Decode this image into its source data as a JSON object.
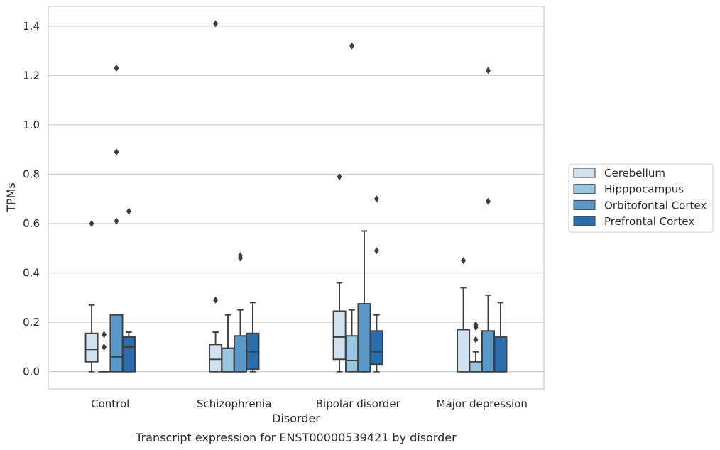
{
  "chart_data": {
    "type": "box",
    "xlabel": "Disorder",
    "ylabel": "TPMs",
    "caption": "Transcript expression for ENST00000539421 by disorder",
    "ylim": [
      -0.07,
      1.48
    ],
    "yticks": [
      0.0,
      0.2,
      0.4,
      0.6,
      0.8,
      1.0,
      1.2,
      1.4
    ],
    "ytick_labels": [
      "0.0",
      "0.2",
      "0.4",
      "0.6",
      "0.8",
      "1.0",
      "1.2",
      "1.4"
    ],
    "grid": "horizontal",
    "legend_position": "right",
    "categories": [
      "Control",
      "Schizophrenia",
      "Bipolar disorder",
      "Major depression"
    ],
    "series": [
      {
        "name": "Cerebellum",
        "color": "#d1e1f0",
        "boxes": [
          {
            "whislo": 0.0,
            "q1": 0.04,
            "med": 0.09,
            "q3": 0.155,
            "whishi": 0.27,
            "fliers": [
              0.6
            ]
          },
          {
            "whislo": 0.0,
            "q1": 0.0,
            "med": 0.05,
            "q3": 0.11,
            "whishi": 0.16,
            "fliers": [
              0.29,
              1.41
            ]
          },
          {
            "whislo": 0.0,
            "q1": 0.05,
            "med": 0.14,
            "q3": 0.245,
            "whishi": 0.36,
            "fliers": [
              0.79
            ]
          },
          {
            "whislo": 0.0,
            "q1": 0.0,
            "med": 0.0,
            "q3": 0.17,
            "whishi": 0.34,
            "fliers": [
              0.45
            ]
          }
        ]
      },
      {
        "name": "Hipppocampus",
        "color": "#9ac6df",
        "boxes": [
          {
            "whislo": 0.0,
            "q1": 0.0,
            "med": 0.0,
            "q3": 0.0,
            "whishi": 0.0,
            "fliers": [
              0.1,
              0.15
            ]
          },
          {
            "whislo": 0.0,
            "q1": 0.0,
            "med": 0.0,
            "q3": 0.095,
            "whishi": 0.23,
            "fliers": []
          },
          {
            "whislo": 0.0,
            "q1": 0.0,
            "med": 0.045,
            "q3": 0.145,
            "whishi": 0.25,
            "fliers": [
              1.32
            ]
          },
          {
            "whislo": 0.0,
            "q1": 0.0,
            "med": 0.0,
            "q3": 0.04,
            "whishi": 0.08,
            "fliers": [
              0.13,
              0.18,
              0.19
            ]
          }
        ]
      },
      {
        "name": "Orbitofontal Cortex",
        "color": "#5a99c7",
        "boxes": [
          {
            "whislo": 0.0,
            "q1": 0.0,
            "med": 0.06,
            "q3": 0.23,
            "whishi": 0.23,
            "fliers": [
              0.61,
              0.89,
              1.23
            ]
          },
          {
            "whislo": 0.0,
            "q1": 0.0,
            "med": 0.0,
            "q3": 0.145,
            "whishi": 0.25,
            "fliers": [
              0.46,
              0.47
            ]
          },
          {
            "whislo": 0.0,
            "q1": 0.0,
            "med": 0.0,
            "q3": 0.275,
            "whishi": 0.57,
            "fliers": []
          },
          {
            "whislo": 0.0,
            "q1": 0.0,
            "med": 0.0,
            "q3": 0.165,
            "whishi": 0.31,
            "fliers": [
              0.69,
              1.22
            ]
          }
        ]
      },
      {
        "name": "Prefrontal Cortex",
        "color": "#2a6eaf",
        "boxes": [
          {
            "whislo": 0.0,
            "q1": 0.0,
            "med": 0.1,
            "q3": 0.14,
            "whishi": 0.16,
            "fliers": [
              0.65
            ]
          },
          {
            "whislo": 0.0,
            "q1": 0.01,
            "med": 0.08,
            "q3": 0.155,
            "whishi": 0.28,
            "fliers": []
          },
          {
            "whislo": 0.0,
            "q1": 0.03,
            "med": 0.08,
            "q3": 0.165,
            "whishi": 0.23,
            "fliers": [
              0.49,
              0.7
            ]
          },
          {
            "whislo": 0.0,
            "q1": 0.0,
            "med": 0.0,
            "q3": 0.14,
            "whishi": 0.28,
            "fliers": []
          }
        ]
      }
    ]
  }
}
